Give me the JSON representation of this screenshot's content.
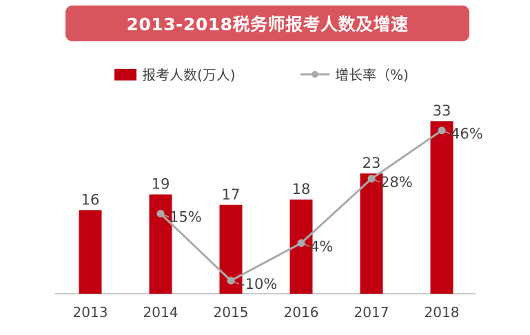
{
  "chart_data": {
    "type": "bar",
    "title": "2013-2018税务师报考人数及增速",
    "categories": [
      "2013",
      "2014",
      "2015",
      "2016",
      "2017",
      "2018"
    ],
    "series": [
      {
        "name": "报考人数(万人)",
        "type": "bar",
        "values": [
          16,
          19,
          17,
          18,
          23,
          33
        ],
        "labels": [
          "16",
          "19",
          "17",
          "18",
          "23",
          "33"
        ],
        "color": "#c00010"
      },
      {
        "name": "增长率（%)",
        "type": "line",
        "values": [
          null,
          15,
          -10,
          4,
          28,
          46
        ],
        "labels": [
          "",
          "15%",
          "-10%",
          "4%",
          "28%",
          "46%"
        ],
        "color": "#aaaaaa"
      }
    ],
    "xlabel": "",
    "ylabel": "",
    "grid": false,
    "legend": "top"
  }
}
